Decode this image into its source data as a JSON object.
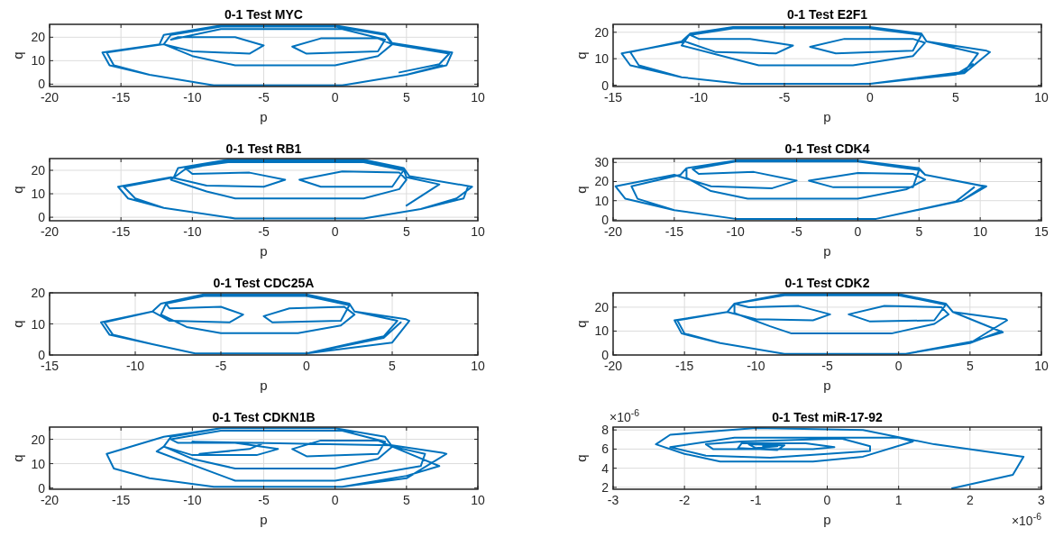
{
  "chart_data": [
    {
      "type": "line",
      "title": "0-1 Test MYC",
      "xlabel": "p",
      "ylabel": "q",
      "xlim": [
        -20,
        10
      ],
      "ylim": [
        -1,
        25.5
      ],
      "xticks": [
        -20,
        -15,
        -10,
        -5,
        0,
        5,
        10
      ],
      "yticks": [
        0,
        10,
        20
      ],
      "grid": true,
      "series": [
        {
          "color": "#0072bd",
          "x": [
            4.5,
            7.3,
            8,
            4,
            3.5,
            0,
            -8,
            -11.5,
            -12,
            -10,
            -7,
            0,
            3,
            4,
            3,
            -1,
            -3,
            -2,
            3,
            3.5,
            0.5,
            -8,
            -11.5,
            -11,
            -7,
            -5,
            -6,
            -10,
            -12,
            -16,
            -15.5,
            -13,
            -8.5,
            0.5,
            5,
            7.8,
            8.2,
            4,
            3.5,
            0,
            -8,
            -12,
            -12.3,
            -16.3,
            -15.8,
            -13,
            -8.5,
            0.5,
            5,
            7.5
          ],
          "values": [
            5,
            8.5,
            13,
            17,
            21,
            24.5,
            24.5,
            21,
            17,
            12,
            8,
            8,
            12,
            17,
            19.5,
            19.5,
            16,
            13,
            14,
            19,
            23.5,
            23.5,
            19,
            20,
            20,
            16.5,
            13,
            14,
            17,
            13.5,
            8,
            4,
            -0.5,
            -0.5,
            4,
            8,
            13.5,
            17.5,
            21.5,
            25,
            25,
            21,
            17,
            13.5,
            8,
            4,
            -0.5,
            -0.5,
            4,
            8
          ]
        }
      ]
    },
    {
      "type": "line",
      "title": "0-1 Test E2F1",
      "xlabel": "p",
      "ylabel": "q",
      "xlim": [
        -15,
        10
      ],
      "ylim": [
        -0.5,
        23
      ],
      "xticks": [
        -15,
        -10,
        -5,
        0,
        5,
        10
      ],
      "yticks": [
        0,
        10,
        20
      ],
      "grid": true,
      "series": [
        {
          "color": "#0072bd",
          "x": [
            0,
            5.5,
            6.3,
            3.3,
            3,
            0,
            -8,
            -10.5,
            -11,
            -8,
            -6.5,
            -1,
            2.5,
            3.2,
            2.5,
            -1.5,
            -3.5,
            -2,
            2.5,
            3,
            0,
            -8,
            -10.5,
            -10,
            -7,
            -4.5,
            -5.5,
            -9,
            -10.8,
            -14.5,
            -14,
            -11,
            -7.5,
            0,
            5.5,
            7,
            6.8,
            3.3,
            3,
            0,
            -8,
            -10.5,
            -11,
            -14,
            -13.5,
            -11,
            -7.5,
            0,
            5,
            6
          ],
          "values": [
            0.5,
            5,
            12,
            16.5,
            19.5,
            22,
            22,
            19.5,
            15,
            10,
            7.5,
            7.5,
            11,
            16,
            17.5,
            17.5,
            14.5,
            12,
            13,
            19,
            21.5,
            21.5,
            19,
            17.5,
            17.5,
            15,
            12,
            12.5,
            16.5,
            12,
            7.5,
            3,
            0.5,
            0.5,
            4.5,
            12.5,
            13,
            16.5,
            19.5,
            22,
            22,
            19.5,
            16.5,
            12.5,
            7.5,
            3,
            0.5,
            0.5,
            4,
            8
          ]
        }
      ]
    },
    {
      "type": "line",
      "title": "0-1 Test RB1",
      "xlabel": "p",
      "ylabel": "q",
      "xlim": [
        -20,
        10
      ],
      "ylim": [
        -1.5,
        25
      ],
      "xticks": [
        -20,
        -15,
        -10,
        -5,
        0,
        5,
        10
      ],
      "yticks": [
        0,
        10,
        20
      ],
      "grid": true,
      "series": [
        {
          "color": "#0072bd",
          "x": [
            5,
            7.3,
            5,
            4.8,
            2,
            -7.5,
            -10.5,
            -11.5,
            -9,
            -7,
            2,
            4.5,
            5,
            4.5,
            0.5,
            -2.5,
            -1,
            4,
            4.8,
            2,
            -7.5,
            -10.5,
            -10,
            -6,
            -3.5,
            -5,
            -9,
            -11.5,
            -15.2,
            -14.5,
            -12,
            -7,
            2,
            6,
            8.5,
            9.6,
            5.2,
            4.8,
            2,
            -7.5,
            -11,
            -11.3,
            -14.8,
            -14,
            -12,
            -7,
            2,
            6,
            9,
            9.3
          ],
          "values": [
            5,
            14,
            17,
            20.5,
            24,
            24,
            20.5,
            16,
            11,
            8,
            8,
            12,
            16,
            19,
            19.5,
            16,
            13,
            13,
            20,
            23.5,
            23.5,
            21,
            18.5,
            19,
            16,
            13,
            13.5,
            17,
            13,
            8,
            4,
            -0.5,
            -0.5,
            3.5,
            8,
            13,
            17.5,
            21,
            24.5,
            24.5,
            21,
            17,
            13,
            8,
            4,
            -0.5,
            -0.5,
            3.5,
            8,
            13
          ]
        }
      ]
    },
    {
      "type": "line",
      "title": "0-1 Test CDK4",
      "xlabel": "p",
      "ylabel": "q",
      "xlim": [
        -20,
        15
      ],
      "ylim": [
        -0.5,
        32
      ],
      "xticks": [
        -20,
        -15,
        -10,
        -5,
        0,
        5,
        10,
        15
      ],
      "yticks": [
        0,
        10,
        20,
        30
      ],
      "grid": true,
      "series": [
        {
          "color": "#0072bd",
          "x": [
            1.5,
            8.5,
            10.3,
            5.5,
            5,
            0,
            -10,
            -14,
            -14,
            -12,
            -9,
            0,
            4,
            5.5,
            4.5,
            0,
            -4,
            -2,
            4.5,
            5,
            0,
            -10,
            -13.5,
            -13,
            -8.5,
            -5,
            -7,
            -12,
            -15,
            -19.8,
            -19,
            -15,
            -10,
            1.5,
            8.5,
            10.5,
            10,
            5.5,
            5,
            0,
            -10,
            -14,
            -14.5,
            -18.5,
            -18,
            -15,
            -10,
            1.5,
            8,
            9.5
          ],
          "values": [
            0.5,
            10,
            17.5,
            23.5,
            26.5,
            31,
            31,
            27,
            22,
            15,
            11,
            11,
            16,
            21,
            24,
            24.5,
            20.5,
            17,
            17,
            26,
            30.5,
            30.5,
            26.5,
            24,
            25,
            20.5,
            16.5,
            17.5,
            23.5,
            17.5,
            11,
            5,
            0.5,
            0.5,
            10,
            17.5,
            18,
            23.5,
            27,
            31,
            31,
            27,
            23.5,
            17.5,
            11,
            5,
            0.5,
            0.5,
            9.5,
            17
          ]
        }
      ]
    },
    {
      "type": "line",
      "title": "0-1 Test CDC25A",
      "xlabel": "p",
      "ylabel": "q",
      "xlim": [
        -15,
        10
      ],
      "ylim": [
        0,
        20
      ],
      "xticks": [
        -15,
        -10,
        -5,
        0,
        5,
        10
      ],
      "yticks": [
        0,
        10,
        20
      ],
      "grid": true,
      "series": [
        {
          "color": "#0072bd",
          "x": [
            0,
            4.5,
            5.3,
            2.8,
            2.5,
            0,
            -6,
            -8.2,
            -8.5,
            -7,
            -5,
            -0.5,
            2,
            2.8,
            2.2,
            -1,
            -2.5,
            -2,
            2,
            2.5,
            0,
            -6,
            -8.2,
            -8,
            -5,
            -3.7,
            -4.5,
            -8,
            -9,
            -12,
            -11.5,
            -9,
            -6.5,
            0,
            5,
            6,
            5.8,
            2.8,
            2.5,
            0,
            -6,
            -8.5,
            -9,
            -11.8,
            -11.3,
            -9,
            -6.5,
            0,
            4.5,
            5.5
          ],
          "values": [
            0.5,
            6,
            11,
            14,
            16.5,
            19,
            19,
            16.5,
            13,
            9,
            7,
            7,
            9.5,
            13,
            15.5,
            15,
            12.5,
            10.5,
            11,
            16,
            19,
            19,
            16.5,
            15,
            15.5,
            13,
            10.5,
            11,
            14,
            10.5,
            6.5,
            3.5,
            0.5,
            0.5,
            4,
            11,
            11.5,
            14,
            16.5,
            19.5,
            19.5,
            16.5,
            14,
            10.5,
            6.5,
            3.5,
            0.5,
            0.5,
            5.5,
            10.5
          ]
        }
      ]
    },
    {
      "type": "line",
      "title": "0-1 Test CDK2",
      "xlabel": "p",
      "ylabel": "q",
      "xlim": [
        -20,
        10
      ],
      "ylim": [
        0,
        26
      ],
      "xticks": [
        -20,
        -15,
        -10,
        -5,
        0,
        5,
        10
      ],
      "yticks": [
        0,
        10,
        20
      ],
      "grid": true,
      "series": [
        {
          "color": "#0072bd",
          "x": [
            0.5,
            5,
            7.3,
            3.8,
            3.3,
            0,
            -8,
            -11.5,
            -11.5,
            -9,
            -7.5,
            -0.5,
            2.5,
            3.5,
            3,
            -1,
            -3.5,
            -2,
            2.5,
            3.3,
            0,
            -8,
            -11.5,
            -10.5,
            -7,
            -4.8,
            -6,
            -10,
            -12,
            -15.7,
            -15.2,
            -12.5,
            -8,
            0.5,
            5,
            7.6,
            7.5,
            3.8,
            3.3,
            0,
            -8,
            -11.5,
            -12,
            -15.5,
            -15,
            -12.5,
            -8,
            0.5,
            5,
            7.2
          ],
          "values": [
            0.5,
            5.5,
            9.5,
            18,
            21.5,
            25,
            25,
            21.5,
            17.5,
            12,
            9,
            9,
            13,
            17,
            20,
            20.5,
            17,
            14,
            14.5,
            21,
            25,
            25,
            21.5,
            20,
            20.5,
            17,
            14.5,
            15,
            18,
            14.5,
            9,
            5,
            0.5,
            0.5,
            5,
            14.5,
            15,
            18,
            21.5,
            25.5,
            25.5,
            21.5,
            18,
            14.5,
            9,
            5,
            0.5,
            0.5,
            5,
            10
          ]
        }
      ]
    },
    {
      "type": "line",
      "title": "0-1 Test CDKN1B",
      "xlabel": "p",
      "ylabel": "q",
      "xlim": [
        -20,
        10
      ],
      "ylim": [
        -0.5,
        25
      ],
      "xticks": [
        -20,
        -15,
        -10,
        -5,
        0,
        5,
        10
      ],
      "yticks": [
        0,
        10,
        20
      ],
      "grid": true,
      "series": [
        {
          "color": "#0072bd",
          "x": [
            0.5,
            5,
            7.3,
            4,
            3.5,
            0,
            -8,
            -11.5,
            -12,
            -10,
            -7,
            0,
            3,
            4,
            3,
            -1,
            -3,
            -2,
            3,
            3.5,
            0.5,
            -8,
            -11.5,
            -11,
            -7,
            -4,
            -5.5,
            -10,
            -12,
            -12.5,
            -7,
            0,
            6,
            6.3,
            4,
            3.5,
            0,
            -8,
            -12,
            -16,
            -15.5,
            -13,
            -8.5,
            0.5,
            5,
            7.8,
            7.5,
            4,
            -10,
            -9,
            -5,
            -6,
            -9.5
          ],
          "values": [
            0.5,
            5,
            9,
            17,
            21,
            24.5,
            24.5,
            21,
            17,
            12,
            8,
            8,
            12,
            17,
            19.5,
            19.5,
            16,
            13,
            14,
            19,
            23.5,
            23.5,
            20,
            18.5,
            18.5,
            16,
            13.5,
            13.5,
            17,
            15,
            3,
            3,
            9,
            14,
            17,
            21,
            24.5,
            24.5,
            21,
            14,
            8,
            4,
            0.5,
            0.5,
            4,
            14,
            14.5,
            17.5,
            19,
            18.5,
            18.5,
            16,
            14
          ]
        }
      ]
    },
    {
      "type": "line",
      "title": "0-1 Test miR-17-92",
      "xlabel": "p",
      "ylabel": "q",
      "xlim": [
        -3,
        3
      ],
      "ylim": [
        1.8,
        8.3
      ],
      "xticks": [
        -3,
        -2,
        -1,
        0,
        1,
        2,
        3
      ],
      "yticks": [
        2,
        4,
        6,
        8
      ],
      "grid": true,
      "annotations": [
        "×10$^{-6}$",
        "×10$^{-6}$"
      ],
      "series": [
        {
          "color": "#0072bd",
          "x": [
            1.75,
            2.6,
            2.75,
            1.5,
            0.5,
            -1,
            -2.2,
            -2.4,
            -2,
            -1.5,
            -0.2,
            0.5,
            1.2,
            1,
            -1.3,
            -2.2,
            -1.7,
            -0.8,
            0.6,
            0.6,
            0.2,
            -1.2,
            -1.7,
            -1.6,
            -0.2,
            0.1,
            -0.3,
            -1.2,
            -1.25,
            -0.7,
            -0.6,
            -1.1,
            -1,
            -0.7,
            -0.9
          ],
          "values": [
            1.9,
            3.3,
            5.2,
            6.5,
            8,
            8.2,
            7.5,
            6.5,
            5.5,
            4.7,
            4.7,
            5.2,
            6.8,
            7.2,
            7.2,
            6.2,
            5.3,
            5.1,
            5.8,
            6.3,
            7.1,
            6.8,
            6.5,
            6,
            6,
            6.2,
            6.6,
            6.6,
            6.1,
            5.9,
            6.4,
            6.5,
            6.1,
            6.3,
            6.3
          ]
        }
      ]
    }
  ]
}
